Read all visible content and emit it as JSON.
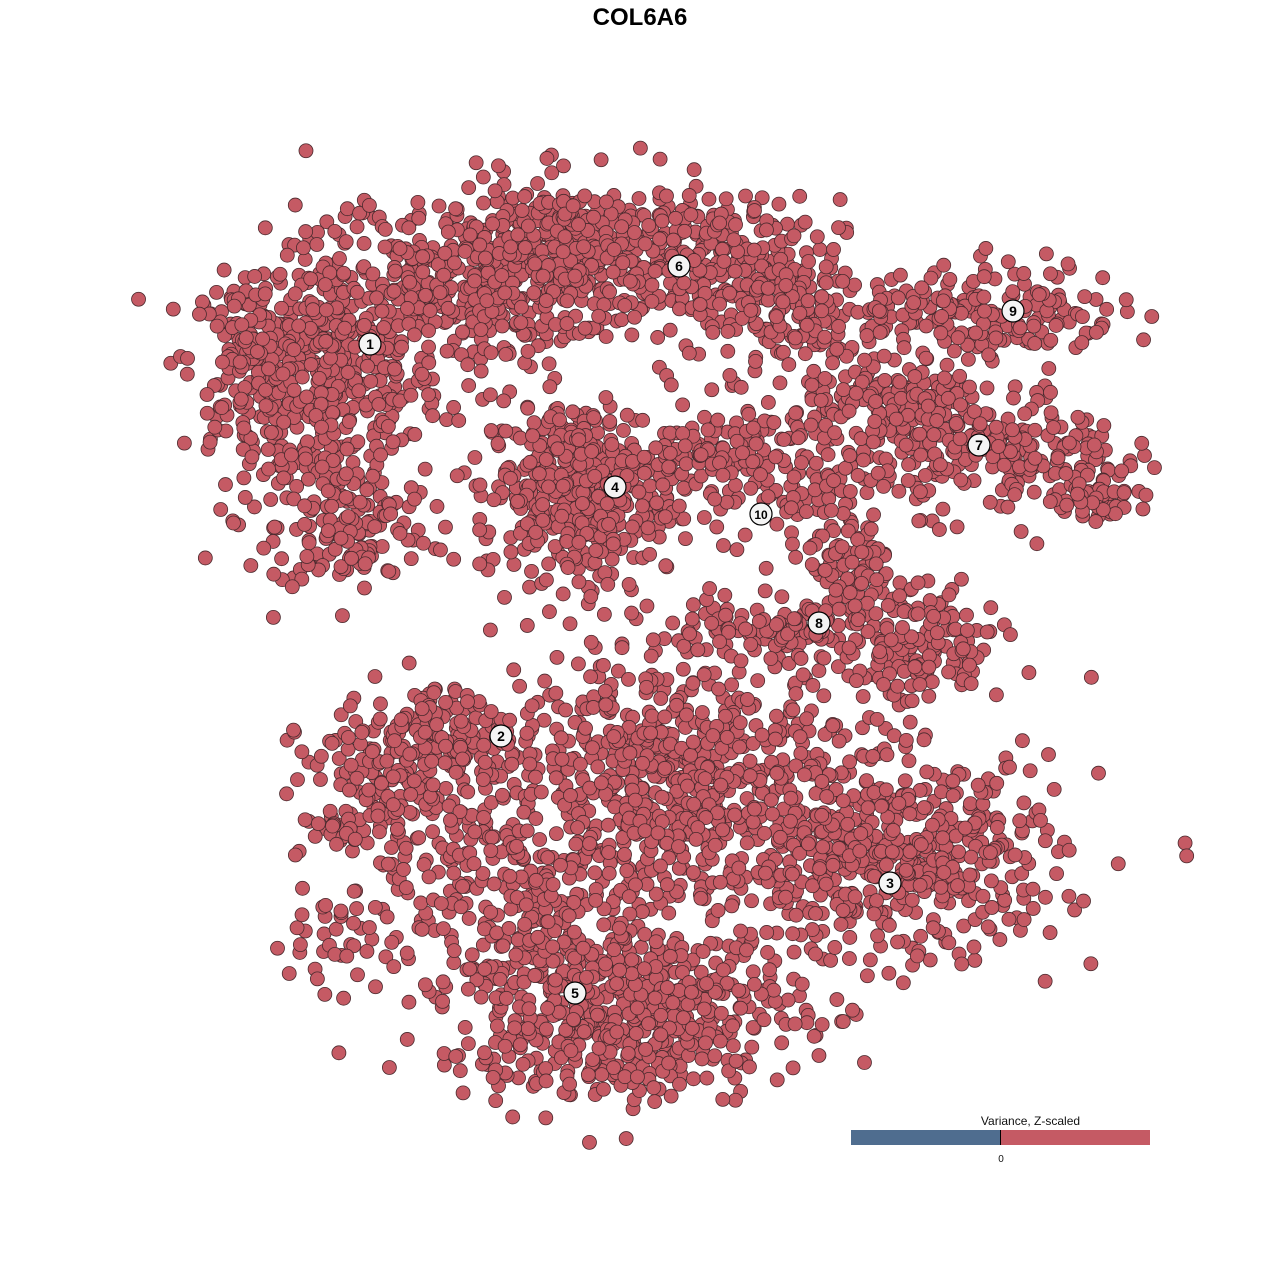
{
  "chart_data": {
    "type": "scatter",
    "title": "COL6A6",
    "xlabel": "",
    "ylabel": "",
    "xlim": [
      -44,
      50
    ],
    "ylim": [
      -46,
      46
    ],
    "grid": false,
    "axes_visible": false,
    "point_color": "#C55A64",
    "point_stroke": "#4a2a2e",
    "clusters": [
      {
        "label": "1",
        "label_pos": [
          -27,
          29.6
        ],
        "blobs": [
          {
            "center": [
              -31,
              26
            ],
            "spread": [
              5.5,
              7
            ],
            "n": 500
          },
          {
            "center": [
              -39,
              28
            ],
            "spread": [
              3,
              4
            ],
            "n": 120
          },
          {
            "center": [
              -29,
              11
            ],
            "spread": [
              4,
              3
            ],
            "n": 120
          },
          {
            "center": [
              -18,
              35
            ],
            "spread": [
              6,
              4
            ],
            "n": 300
          }
        ]
      },
      {
        "label": "6",
        "label_pos": [
          3.9,
          37.4
        ],
        "blobs": [
          {
            "center": [
              -6,
              39
            ],
            "spread": [
              7,
              3.5
            ],
            "n": 400
          },
          {
            "center": [
              8,
              37
            ],
            "spread": [
              6,
              3.5
            ],
            "n": 250
          },
          {
            "center": [
              16,
              32
            ],
            "spread": [
              4,
              3
            ],
            "n": 100
          }
        ]
      },
      {
        "label": "4",
        "label_pos": [
          -2.5,
          15.3
        ],
        "blobs": [
          {
            "center": [
              -6,
              15
            ],
            "spread": [
              5,
              4.5
            ],
            "n": 450
          }
        ]
      },
      {
        "label": "10",
        "label_pos": [
          12.1,
          12.6
        ],
        "blobs": [
          {
            "center": [
              12,
              18
            ],
            "spread": [
              4.5,
              4
            ],
            "n": 120
          },
          {
            "center": [
              7,
              19
            ],
            "spread": [
              3,
              1.5
            ],
            "n": 50
          }
        ]
      },
      {
        "label": "9",
        "label_pos": [
          37.3,
          32.9
        ],
        "blobs": [
          {
            "center": [
              37,
              33
            ],
            "spread": [
              5.5,
              2.5
            ],
            "n": 150
          },
          {
            "center": [
              27,
              33
            ],
            "spread": [
              3,
              1.5
            ],
            "n": 40
          }
        ]
      },
      {
        "label": "7",
        "label_pos": [
          33.9,
          19.5
        ],
        "blobs": [
          {
            "center": [
              36,
              19
            ],
            "spread": [
              6,
              3
            ],
            "n": 200
          },
          {
            "center": [
              26,
              23
            ],
            "spread": [
              5,
              3
            ],
            "n": 150
          },
          {
            "center": [
              45,
              15
            ],
            "spread": [
              3,
              1.5
            ],
            "n": 60
          }
        ]
      },
      {
        "label": "8",
        "label_pos": [
          17.9,
          1.7
        ],
        "blobs": [
          {
            "center": [
              21,
              8
            ],
            "spread": [
              3,
              5
            ],
            "n": 150
          },
          {
            "center": [
              28,
              -1
            ],
            "spread": [
              4,
              3
            ],
            "n": 150
          },
          {
            "center": [
              12,
              1
            ],
            "spread": [
              5,
              1.5
            ],
            "n": 80
          }
        ]
      },
      {
        "label": "2",
        "label_pos": [
          -13.9,
          -9.6
        ],
        "blobs": [
          {
            "center": [
              -24,
              -16
            ],
            "spread": [
              5,
              5
            ],
            "n": 250
          },
          {
            "center": [
              -18,
              -9
            ],
            "spread": [
              5,
              2
            ],
            "n": 100
          },
          {
            "center": [
              -29,
              -30
            ],
            "spread": [
              4,
              2
            ],
            "n": 40
          }
        ]
      },
      {
        "label": "3",
        "label_pos": [
          25,
          -24.3
        ],
        "blobs": [
          {
            "center": [
              4,
              -14
            ],
            "spread": [
              9,
              7
            ],
            "n": 700
          },
          {
            "center": [
              26,
              -22
            ],
            "spread": [
              8,
              5
            ],
            "n": 500
          }
        ]
      },
      {
        "label": "5",
        "label_pos": [
          -6.5,
          -35.3
        ],
        "blobs": [
          {
            "center": [
              -2,
              -37
            ],
            "spread": [
              9,
              4.5
            ],
            "n": 600
          },
          {
            "center": [
              -10,
              -26
            ],
            "spread": [
              5,
              6
            ],
            "n": 200
          }
        ]
      }
    ],
    "legend": {
      "title": "Variance, Z-scaled",
      "tick_label": "0",
      "low_color": "#4F6D8F",
      "high_color": "#C55A64",
      "placement": "bottom-right"
    }
  }
}
